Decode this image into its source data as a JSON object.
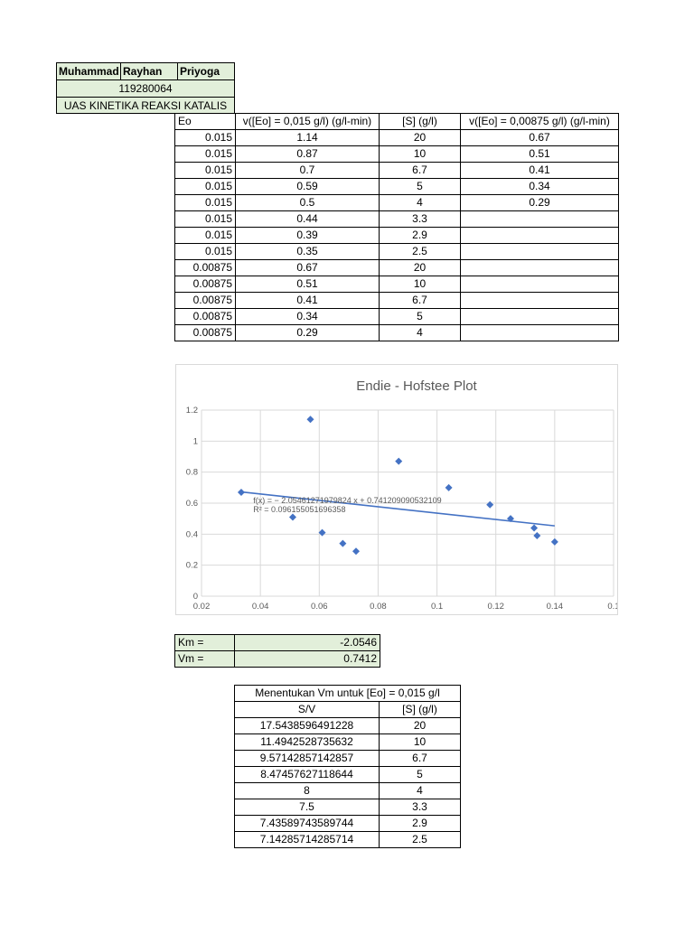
{
  "header": {
    "name": "Muhammad Rayhan Priyoga",
    "name_parts": [
      "Muhammad",
      "Rayhan",
      "Priyoga"
    ],
    "id": "119280064",
    "course": "UAS KINETIKA REAKSI KATALIS"
  },
  "main_table": {
    "headers": [
      "Eo",
      "v([Eo] = 0,015 g/l) (g/l-min)",
      "[S] (g/l)",
      "v([Eo] = 0,00875 g/l) (g/l-min)"
    ],
    "rows": [
      [
        "0.015",
        "1.14",
        "20",
        "0.67"
      ],
      [
        "0.015",
        "0.87",
        "10",
        "0.51"
      ],
      [
        "0.015",
        "0.7",
        "6.7",
        "0.41"
      ],
      [
        "0.015",
        "0.59",
        "5",
        "0.34"
      ],
      [
        "0.015",
        "0.5",
        "4",
        "0.29"
      ],
      [
        "0.015",
        "0.44",
        "3.3",
        ""
      ],
      [
        "0.015",
        "0.39",
        "2.9",
        ""
      ],
      [
        "0.015",
        "0.35",
        "2.5",
        ""
      ],
      [
        "0.00875",
        "0.67",
        "20",
        ""
      ],
      [
        "0.00875",
        "0.51",
        "10",
        ""
      ],
      [
        "0.00875",
        "0.41",
        "6.7",
        ""
      ],
      [
        "0.00875",
        "0.34",
        "5",
        ""
      ],
      [
        "0.00875",
        "0.29",
        "4",
        ""
      ]
    ]
  },
  "chart_data": {
    "type": "scatter",
    "title": "Endie - Hofstee Plot",
    "xlabel": "",
    "ylabel": "",
    "xlim": [
      0.02,
      0.16
    ],
    "ylim": [
      0,
      1.2
    ],
    "x_ticks": [
      "0.02",
      "0.04",
      "0.06",
      "0.08",
      "0.1",
      "0.12",
      "0.14",
      "0.1"
    ],
    "y_ticks": [
      "0",
      "0.2",
      "0.4",
      "0.6",
      "0.8",
      "1",
      "1.2"
    ],
    "grid": true,
    "points": [
      {
        "x": 0.057,
        "y": 1.14
      },
      {
        "x": 0.087,
        "y": 0.87
      },
      {
        "x": 0.104,
        "y": 0.7
      },
      {
        "x": 0.118,
        "y": 0.59
      },
      {
        "x": 0.125,
        "y": 0.5
      },
      {
        "x": 0.133,
        "y": 0.44
      },
      {
        "x": 0.134,
        "y": 0.39
      },
      {
        "x": 0.14,
        "y": 0.35
      },
      {
        "x": 0.0335,
        "y": 0.67
      },
      {
        "x": 0.051,
        "y": 0.51
      },
      {
        "x": 0.061,
        "y": 0.41
      },
      {
        "x": 0.068,
        "y": 0.34
      },
      {
        "x": 0.0725,
        "y": 0.29
      }
    ],
    "trendline": {
      "slope": -2.05461271979824,
      "intercept": 0.741209090532109,
      "x_range": [
        0.0335,
        0.14
      ],
      "equation": "f(x) = − 2.05461271979824 x + 0.741209090532109",
      "r2": "R² = 0.0961550516963​58"
    },
    "colors": {
      "marker": "#4472c4",
      "line": "#4472c4",
      "grid": "#d9d9d9",
      "text": "#595959"
    }
  },
  "params": {
    "rows": [
      {
        "label": "Km =",
        "value": "-2.0546"
      },
      {
        "label": "Vm =",
        "value": "0.7412"
      }
    ]
  },
  "vm_table": {
    "title": "Menentukan Vm untuk [Eo] = 0,015 g/l",
    "headers": [
      "S/V",
      "[S] (g/l)"
    ],
    "rows": [
      [
        "17.5438596491228",
        "20"
      ],
      [
        "11.4942528735632",
        "10"
      ],
      [
        "9.57142857142857",
        "6.7"
      ],
      [
        "8.47457627118644",
        "5"
      ],
      [
        "8",
        "4"
      ],
      [
        "7.5",
        "3.3"
      ],
      [
        "7.43589743589744",
        "2.9"
      ],
      [
        "7.14285714285714",
        "2.5"
      ]
    ]
  },
  "colors": {
    "header_fill": "#e2efda",
    "border": "#000000"
  }
}
